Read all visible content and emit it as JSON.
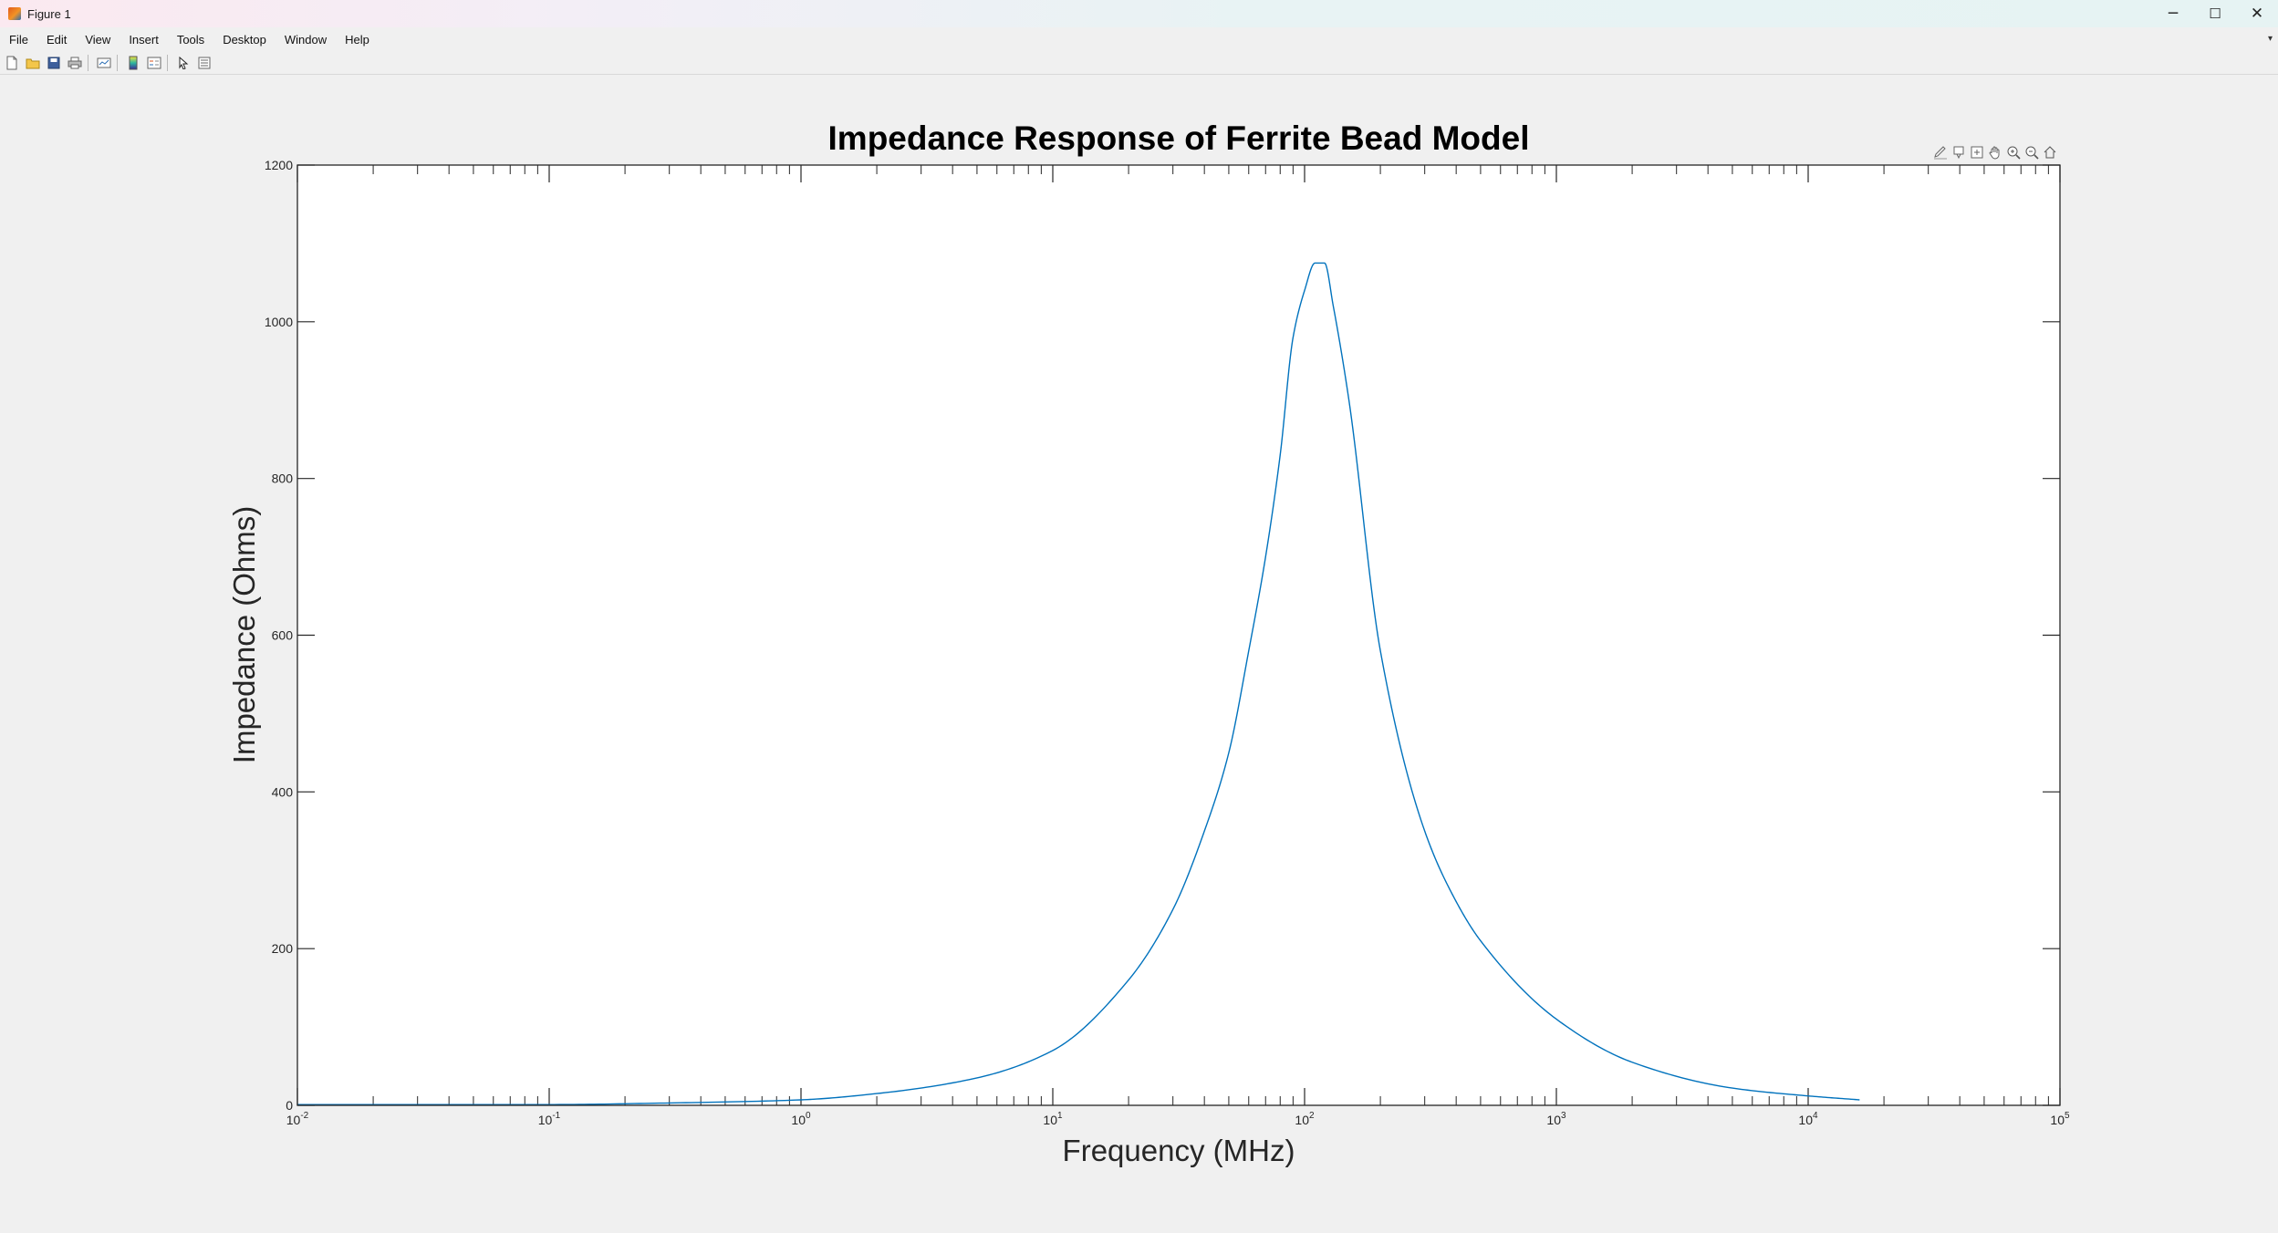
{
  "window": {
    "title": "Figure 1",
    "controls": {
      "minimize": "─",
      "maximize": "☐",
      "close": "✕"
    }
  },
  "menu": {
    "items": [
      "File",
      "Edit",
      "View",
      "Insert",
      "Tools",
      "Desktop",
      "Window",
      "Help"
    ],
    "overflow_arrow": "▾"
  },
  "toolbar": {
    "icons": [
      "new-figure-icon",
      "open-file-icon",
      "save-icon",
      "print-icon",
      "link-plot-icon",
      "colorbar-icon",
      "legend-icon",
      "pointer-icon",
      "property-inspector-icon"
    ]
  },
  "axes_toolbar": {
    "icons": [
      "brush-icon",
      "data-tips-icon",
      "export-icon",
      "pan-icon",
      "zoom-in-icon",
      "zoom-out-icon",
      "home-icon"
    ]
  },
  "colors": {
    "line": "#0072bd",
    "axes_background": "#ffffff",
    "figure_background": "#f0f0f0"
  },
  "chart_data": {
    "type": "line",
    "title": "Impedance Response of Ferrite Bead Model",
    "xlabel": "Frequency (MHz)",
    "ylabel": "Impedance (Ohms)",
    "xscale": "log",
    "xlim": [
      0.01,
      100000
    ],
    "ylim": [
      0,
      1200
    ],
    "grid": false,
    "legend": "none",
    "xticks": [
      0.01,
      0.1,
      1,
      10,
      100,
      1000,
      10000,
      100000
    ],
    "xtick_labels": [
      {
        "base": "10",
        "exp": "-2"
      },
      {
        "base": "10",
        "exp": "-1"
      },
      {
        "base": "10",
        "exp": "0"
      },
      {
        "base": "10",
        "exp": "1"
      },
      {
        "base": "10",
        "exp": "2"
      },
      {
        "base": "10",
        "exp": "3"
      },
      {
        "base": "10",
        "exp": "4"
      },
      {
        "base": "10",
        "exp": "5"
      }
    ],
    "yticks": [
      0,
      200,
      400,
      600,
      800,
      1000,
      1200
    ],
    "ytick_labels": [
      "0",
      "200",
      "400",
      "600",
      "800",
      "1000",
      "1200"
    ],
    "series": [
      {
        "x": [
          0.01,
          0.1,
          0.3,
          1,
          2,
          5,
          10,
          20,
          30,
          40,
          50,
          60,
          70,
          80,
          90,
          100,
          110,
          120,
          130,
          150,
          200,
          300,
          400,
          500,
          1000,
          2000,
          5000,
          10000,
          16000
        ],
        "y": [
          1,
          1,
          3,
          7,
          15,
          35,
          70,
          160,
          250,
          350,
          450,
          580,
          700,
          830,
          980,
          1040,
          1075,
          1075,
          1020,
          900,
          580,
          350,
          260,
          210,
          110,
          55,
          22,
          12,
          7
        ]
      }
    ]
  }
}
